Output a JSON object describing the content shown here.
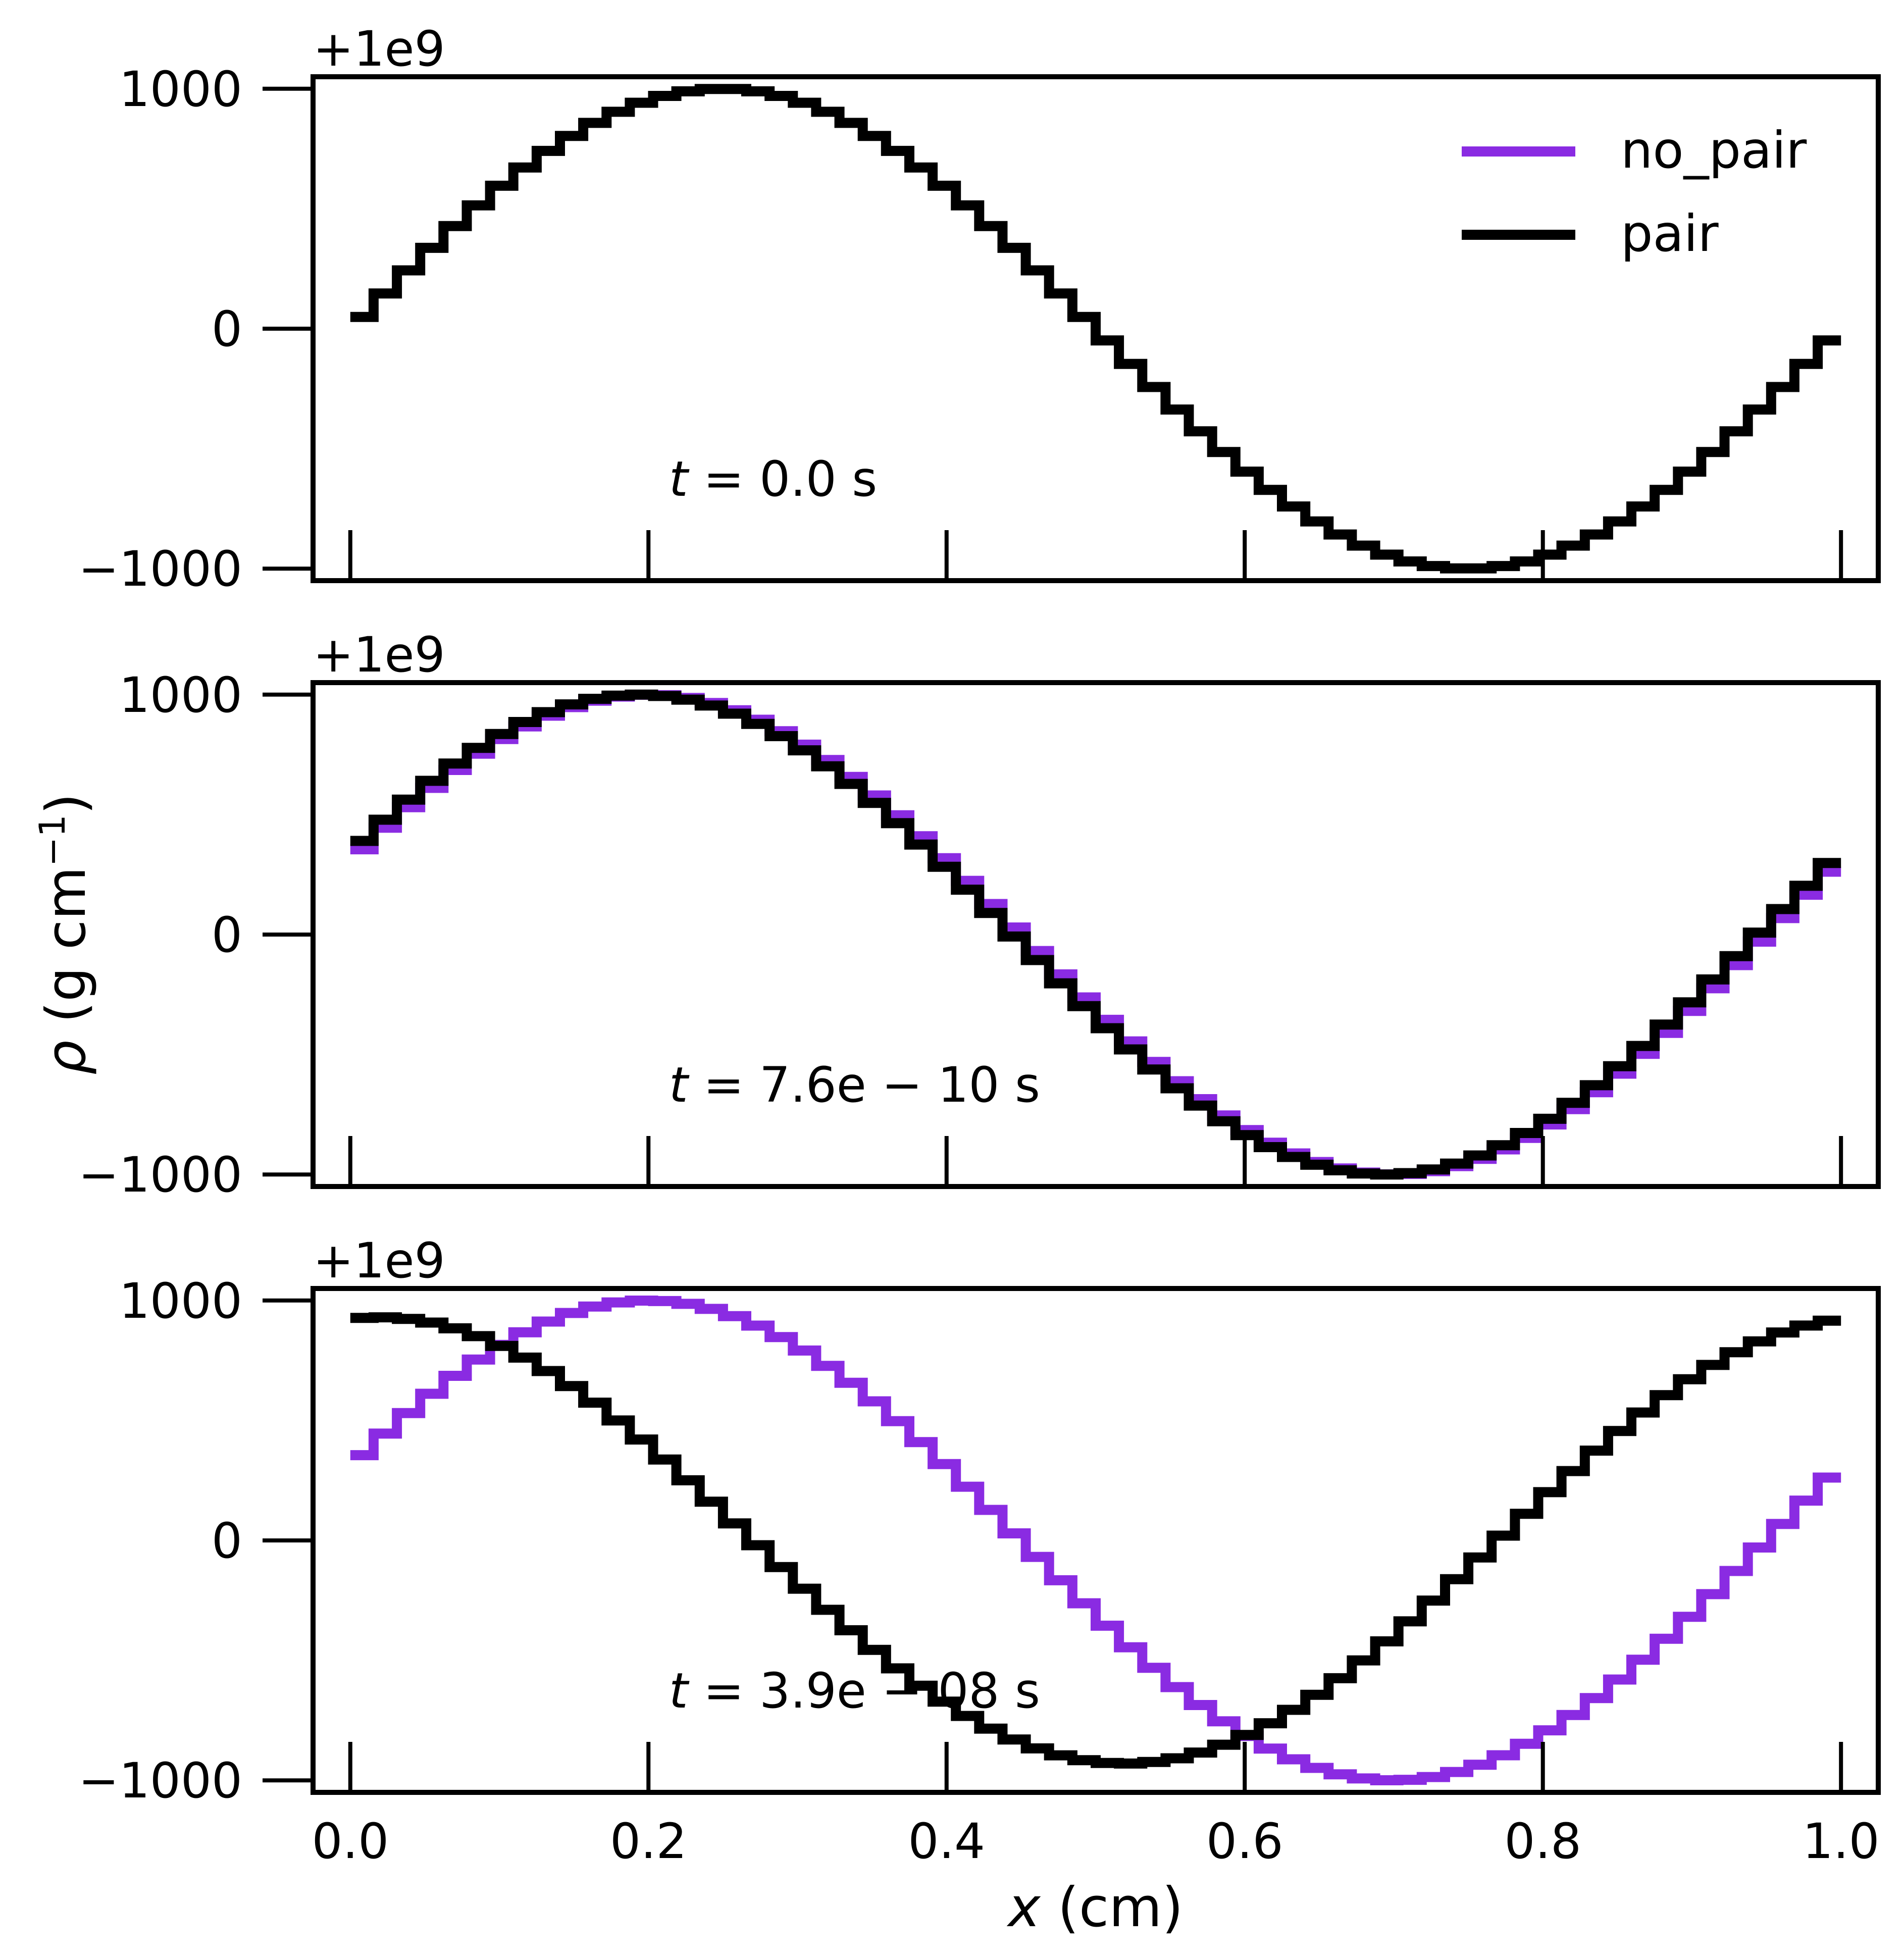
{
  "figure": {
    "xlabel_var": "x",
    "xlabel_unit": " (cm)",
    "ylabel_var": "ρ",
    "ylabel_unit_main": " (g cm",
    "ylabel_unit_sup": "−1",
    "ylabel_unit_close": ")"
  },
  "colors": {
    "no_pair": "#8a2be2",
    "pair": "#000000"
  },
  "chart_data": [
    {
      "type": "line",
      "step": true,
      "time_label": {
        "var": "t",
        "rest": " = 0.0 s"
      },
      "offset_text": "+1e9",
      "xlim": [
        -0.025,
        1.025
      ],
      "ylim": [
        -1050,
        1050
      ],
      "xticks": [
        "0.0",
        "0.2",
        "0.4",
        "0.6",
        "0.8",
        "1.0"
      ],
      "yticks": [
        "1000",
        "0",
        "−1000"
      ],
      "legend": {
        "placement": "top-right",
        "entries": [
          "no_pair",
          "pair"
        ]
      },
      "grid": false,
      "series": [
        {
          "name": "no_pair",
          "cells": 64,
          "amplitude": 1000,
          "phase": 0.0,
          "visible": false
        },
        {
          "name": "pair",
          "cells": 64,
          "amplitude": 1000,
          "phase": 0.0
        }
      ]
    },
    {
      "type": "line",
      "step": true,
      "time_label": {
        "var": "t",
        "rest": " = 7.6e − 10 s"
      },
      "offset_text": "+1e9",
      "xlim": [
        -0.025,
        1.025
      ],
      "ylim": [
        -1050,
        1050
      ],
      "xticks": [
        "0.0",
        "0.2",
        "0.4",
        "0.6",
        "0.8",
        "1.0"
      ],
      "yticks": [
        "1000",
        "0",
        "−1000"
      ],
      "grid": false,
      "series": [
        {
          "name": "no_pair",
          "cells": 64,
          "amplitude": 1000,
          "phase": -0.05
        },
        {
          "name": "pair",
          "cells": 64,
          "amplitude": 1000,
          "phase": -0.056
        }
      ]
    },
    {
      "type": "line",
      "step": true,
      "time_label": {
        "var": "t",
        "rest": " = 3.9e − 08 s"
      },
      "offset_text": "+1e9",
      "xlim": [
        -0.025,
        1.025
      ],
      "ylim": [
        -1050,
        1050
      ],
      "xticks": [
        "0.0",
        "0.2",
        "0.4",
        "0.6",
        "0.8",
        "1.0"
      ],
      "yticks": [
        "1000",
        "0",
        "−1000"
      ],
      "grid": false,
      "series": [
        {
          "name": "no_pair",
          "cells": 64,
          "amplitude": 1000,
          "phase": -0.05
        },
        {
          "name": "pair",
          "cells": 64,
          "amplitude": 930,
          "phase": -0.23
        }
      ]
    }
  ]
}
